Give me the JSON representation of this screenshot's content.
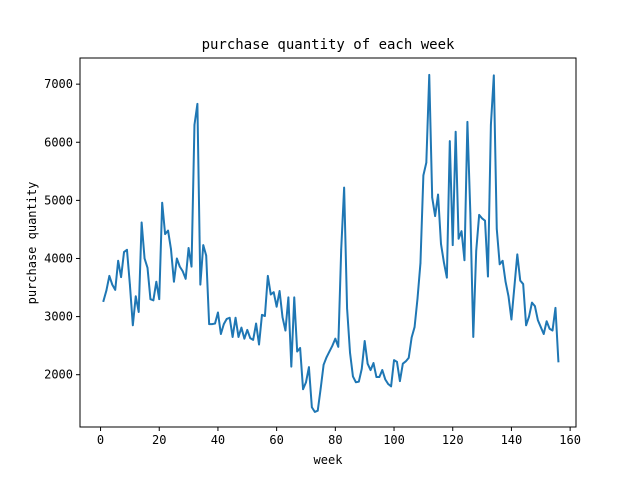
{
  "chart_data": {
    "type": "line",
    "title": "purchase quantity of each week",
    "xlabel": "week",
    "ylabel": "purchase quantity",
    "xlim": [
      -7,
      162
    ],
    "ylim": [
      1100,
      7450
    ],
    "grid": false,
    "x_ticks": [
      0,
      20,
      40,
      60,
      80,
      100,
      120,
      140,
      160
    ],
    "y_ticks": [
      2000,
      3000,
      4000,
      5000,
      6000,
      7000
    ],
    "x_tick_labels": [
      "0",
      "20",
      "40",
      "60",
      "80",
      "100",
      "120",
      "140",
      "160"
    ],
    "y_tick_labels": [
      "2000",
      "3000",
      "4000",
      "5000",
      "6000",
      "7000"
    ],
    "line_color": "#1f77b4",
    "series": [
      {
        "x_start": 1,
        "values": [
          3270,
          3450,
          3700,
          3550,
          3460,
          3960,
          3680,
          4110,
          4150,
          3550,
          2850,
          3350,
          3080,
          4620,
          4000,
          3840,
          3300,
          3280,
          3600,
          3300,
          4960,
          4420,
          4480,
          4160,
          3600,
          4000,
          3860,
          3780,
          3650,
          4180,
          3860,
          6300,
          6660,
          3550,
          4230,
          4050,
          2870,
          2870,
          2880,
          3070,
          2700,
          2870,
          2960,
          2980,
          2650,
          2980,
          2650,
          2810,
          2620,
          2770,
          2630,
          2600,
          2880,
          2520,
          3030,
          3010,
          3700,
          3380,
          3420,
          3170,
          3440,
          2990,
          2760,
          3330,
          2140,
          3330,
          2400,
          2460,
          1750,
          1870,
          2130,
          1440,
          1360,
          1380,
          1760,
          2170,
          2300,
          2400,
          2500,
          2620,
          2480,
          4160,
          5220,
          3140,
          2380,
          1970,
          1870,
          1880,
          2100,
          2580,
          2190,
          2080,
          2200,
          1960,
          1960,
          2080,
          1920,
          1840,
          1800,
          2250,
          2220,
          1890,
          2190,
          2230,
          2290,
          2640,
          2820,
          3310,
          3920,
          5430,
          5650,
          7160,
          5050,
          4730,
          5100,
          4250,
          3930,
          3670,
          6020,
          4230,
          6180,
          4340,
          4470,
          3970,
          6350,
          4780,
          2650,
          4130,
          4750,
          4690,
          4650,
          3690,
          6300,
          7150,
          4510,
          3900,
          3960,
          3600,
          3350,
          2950,
          3510,
          4070,
          3620,
          3560,
          2850,
          3000,
          3240,
          3180,
          2940,
          2820,
          2700,
          2920,
          2790,
          2760,
          3150,
          2230
        ]
      }
    ]
  }
}
